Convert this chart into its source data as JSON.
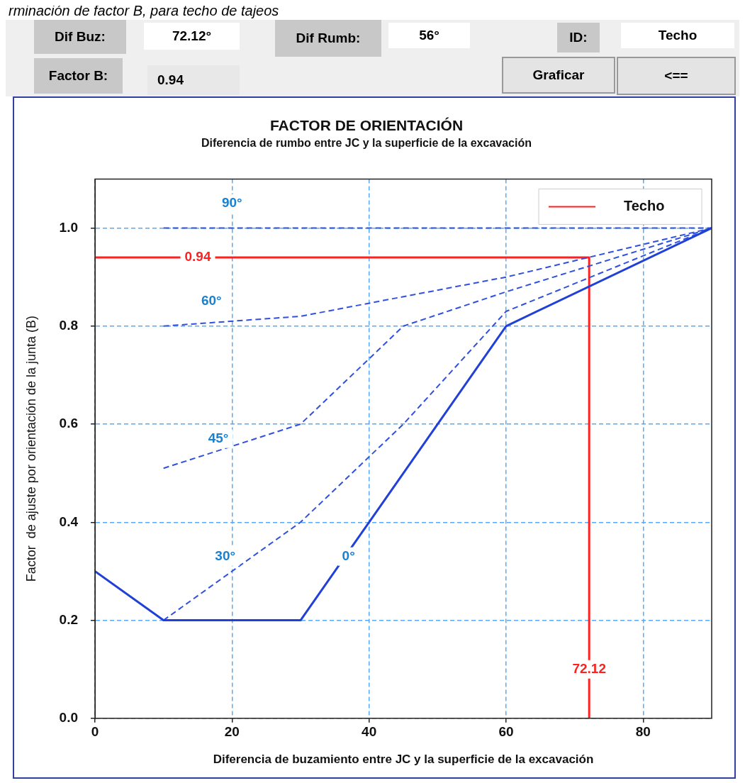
{
  "chart_data": {
    "type": "line",
    "title": "FACTOR DE ORIENTACIÓN",
    "subtitle": "Diferencia de rumbo entre JC y la superficie de la excavación",
    "xlabel": "Diferencia de buzamiento entre JC y la superficie de la excavación",
    "ylabel": "Factor  de ajuste por orientación de la junta (B)",
    "xlim": [
      0,
      90
    ],
    "xticks": [
      0,
      20,
      40,
      60,
      80
    ],
    "ylim": [
      0,
      1.1
    ],
    "yticks": [
      {
        "value": 0,
        "label": "0.0"
      },
      {
        "value": 0.2,
        "label": "0.2"
      },
      {
        "value": 0.4,
        "label": "0.4"
      },
      {
        "value": 0.6,
        "label": "0.6"
      },
      {
        "value": 0.8,
        "label": "0.8"
      },
      {
        "value": 1,
        "label": "1.0"
      }
    ],
    "grid": true,
    "legend": "top right",
    "marker": "none",
    "series": [
      {
        "color": "#2040d8",
        "line_style": "solid",
        "x": [
          0,
          10,
          30,
          40,
          60,
          90
        ],
        "values": [
          0.3,
          0.2,
          0.2,
          0.4,
          0.8,
          1.0
        ]
      },
      {
        "color": "#3050e0",
        "line_style": "dashed",
        "x": [
          10,
          30,
          45,
          60,
          90
        ],
        "values": [
          0.2,
          0.4,
          0.6,
          0.83,
          1.0
        ]
      },
      {
        "color": "#3050e0",
        "line_style": "dashed",
        "x": [
          10,
          30,
          45,
          60,
          90
        ],
        "values": [
          0.51,
          0.6,
          0.8,
          0.87,
          1.0
        ]
      },
      {
        "color": "#3050e0",
        "line_style": "dashed",
        "x": [
          10,
          30,
          60,
          90
        ],
        "values": [
          0.8,
          0.82,
          0.9,
          1.0
        ]
      },
      {
        "color": "#3050e0",
        "line_style": "dashed",
        "x": [
          10,
          90
        ],
        "values": [
          1.0,
          1.0
        ]
      },
      {
        "name": "Techo",
        "color": "#ff2020",
        "line_style": "solid",
        "x": [
          0,
          72.12,
          72.12
        ],
        "values": [
          0.94,
          0.94,
          0
        ]
      }
    ],
    "annotations": [
      "rminación de factor B, para techo de tajeos",
      "Dif Buz:",
      "72.12°",
      "Dif Rumb:",
      "56°",
      "ID:",
      "Techo",
      "Factor B:",
      "0.94",
      "Graficar",
      "<==",
      {
        "text": "90°",
        "x": 20,
        "y": 1.05
      },
      {
        "text": "60°",
        "x": 17,
        "y": 0.85
      },
      {
        "text": "45°",
        "x": 18,
        "y": 0.57
      },
      {
        "text": "30°",
        "x": 19,
        "y": 0.33
      },
      {
        "text": "0°",
        "x": 37,
        "y": 0.33
      },
      {
        "text": "0.94",
        "x": 15,
        "y": 0.94
      },
      {
        "text": "72.12",
        "x": 72.12,
        "y": 0.1
      }
    ]
  }
}
